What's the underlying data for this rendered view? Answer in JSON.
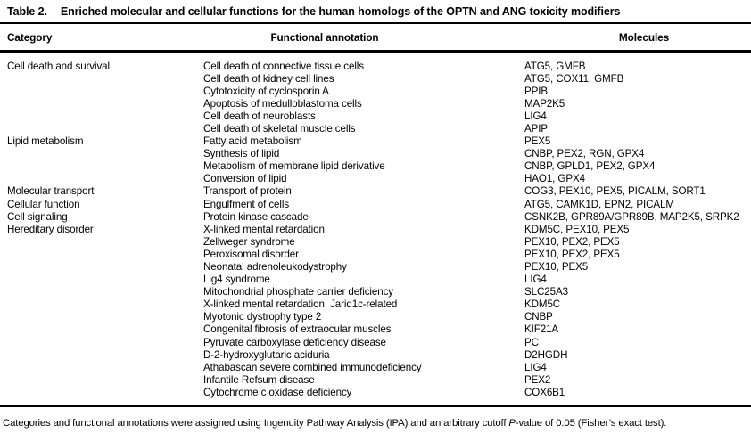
{
  "title": {
    "label": "Table 2.",
    "text": "Enriched molecular and cellular functions for the human homologs of the OPTN and ANG toxicity modifiers"
  },
  "table": {
    "columns": [
      "Category",
      "Functional annotation",
      "Molecules"
    ],
    "rows": [
      {
        "category": "Cell death and survival",
        "annotation": "Cell death of connective tissue cells",
        "molecules": "ATG5, GMFB"
      },
      {
        "category": "",
        "annotation": "Cell death of kidney cell lines",
        "molecules": "ATG5, COX11, GMFB"
      },
      {
        "category": "",
        "annotation": "Cytotoxicity of cyclosporin A",
        "molecules": "PPIB"
      },
      {
        "category": "",
        "annotation": "Apoptosis of medulloblastoma cells",
        "molecules": "MAP2K5"
      },
      {
        "category": "",
        "annotation": "Cell death of neuroblasts",
        "molecules": "LIG4"
      },
      {
        "category": "",
        "annotation": "Cell death of skeletal muscle cells",
        "molecules": "APIP"
      },
      {
        "category": "Lipid metabolism",
        "annotation": "Fatty acid metabolism",
        "molecules": "PEX5"
      },
      {
        "category": "",
        "annotation": "Synthesis of lipid",
        "molecules": "CNBP, PEX2, RGN, GPX4"
      },
      {
        "category": "",
        "annotation": "Metabolism of membrane lipid derivative",
        "molecules": "CNBP, GPLD1, PEX2, GPX4"
      },
      {
        "category": "",
        "annotation": "Conversion of lipid",
        "molecules": "HAO1, GPX4"
      },
      {
        "category": "Molecular transport",
        "annotation": "Transport of protein",
        "molecules": "COG3, PEX10, PEX5, PICALM, SORT1"
      },
      {
        "category": "Cellular function",
        "annotation": "Engulfment of cells",
        "molecules": "ATG5, CAMK1D, EPN2, PICALM"
      },
      {
        "category": "Cell signaling",
        "annotation": "Protein kinase cascade",
        "molecules": "CSNK2B, GPR89A/GPR89B, MAP2K5, SRPK2"
      },
      {
        "category": "Hereditary disorder",
        "annotation": "X-linked mental retardation",
        "molecules": "KDM5C, PEX10, PEX5"
      },
      {
        "category": "",
        "annotation": "Zellweger syndrome",
        "molecules": "PEX10, PEX2, PEX5"
      },
      {
        "category": "",
        "annotation": "Peroxisomal disorder",
        "molecules": "PEX10, PEX2, PEX5"
      },
      {
        "category": "",
        "annotation": "Neonatal adrenoleukodystrophy",
        "molecules": "PEX10, PEX5"
      },
      {
        "category": "",
        "annotation": "Lig4 syndrome",
        "molecules": "LIG4"
      },
      {
        "category": "",
        "annotation": "Mitochondrial phosphate carrier deficiency",
        "molecules": "SLC25A3"
      },
      {
        "category": "",
        "annotation": "X-linked mental retardation, Jarid1c-related",
        "molecules": "KDM5C"
      },
      {
        "category": "",
        "annotation": "Myotonic dystrophy type 2",
        "molecules": "CNBP"
      },
      {
        "category": "",
        "annotation": "Congenital fibrosis of extraocular muscles",
        "molecules": "KIF21A"
      },
      {
        "category": "",
        "annotation": "Pyruvate carboxylase deficiency disease",
        "molecules": "PC"
      },
      {
        "category": "",
        "annotation": "D-2-hydroxyglutaric aciduria",
        "molecules": "D2HGDH"
      },
      {
        "category": "",
        "annotation": "Athabascan severe combined immunodeficiency",
        "molecules": "LIG4"
      },
      {
        "category": "",
        "annotation": "Infantile Refsum disease",
        "molecules": "PEX2"
      },
      {
        "category": "",
        "annotation": "Cytochrome c oxidase deficiency",
        "molecules": "COX6B1"
      }
    ]
  },
  "footnote": {
    "part1": "Categories and functional annotations were assigned using Ingenuity Pathway Analysis (IPA) and an arbitrary cutoff ",
    "italic_term": "P",
    "part2": "-value of 0.05 (Fisher’s exact test)."
  }
}
